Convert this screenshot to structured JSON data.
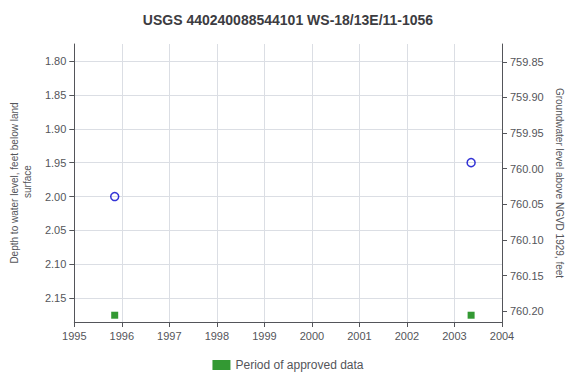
{
  "chart_data": {
    "type": "scatter",
    "title": "USGS 440240088544101 WS-18/13E/11-1056",
    "y_label": "Depth to water level, feet below land\n surface",
    "y2_label": "Groundwater level above NGVD 1929, feet",
    "xlim": [
      1995,
      2004
    ],
    "xticks": [
      1995,
      1996,
      1997,
      1998,
      1999,
      2000,
      2001,
      2002,
      2003,
      2004
    ],
    "ylim": [
      2.185,
      1.775
    ],
    "yticks": [
      {
        "value": 1.8,
        "label": "1.80"
      },
      1.85,
      {
        "value": 1.9,
        "label": "1.90"
      },
      1.95,
      {
        "value": 2.0,
        "label": "2.00"
      },
      2.05,
      {
        "value": 2.1,
        "label": "2.10"
      },
      2.15
    ],
    "y2lim": [
      760.215,
      759.825
    ],
    "y2ticks": [
      {
        "value": 760.2,
        "label": "760.20"
      },
      760.15,
      {
        "value": 760.1,
        "label": "760.10"
      },
      760.05,
      {
        "value": 760.0,
        "label": "760.00"
      },
      759.95,
      {
        "value": 759.9,
        "label": "759.90"
      },
      759.85
    ],
    "grid": true,
    "legend": "bottom",
    "series": [
      {
        "x": [
          1995.85,
          2003.35
        ],
        "values": [
          2.0,
          1.95
        ],
        "color": "#0000cc",
        "marker": "open_circle"
      },
      {
        "name": "Period of approved data",
        "x": [
          1995.85,
          2003.35
        ],
        "values": [
          2.175,
          2.175
        ],
        "color": "#008000",
        "marker": "square"
      }
    ]
  }
}
